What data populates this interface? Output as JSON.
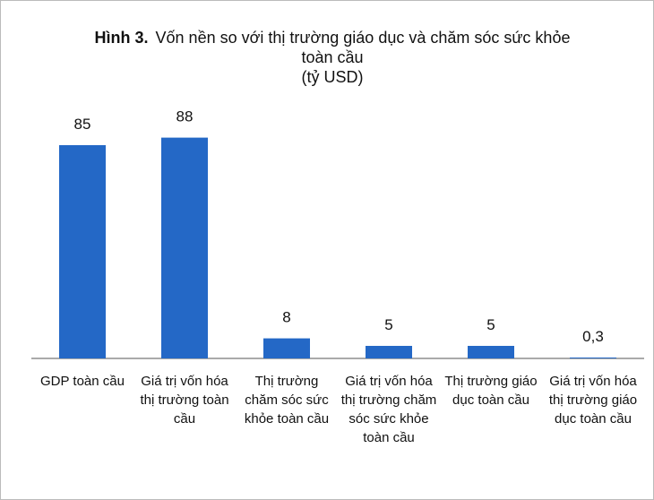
{
  "chart_data": {
    "type": "bar",
    "title_prefix": "Hình 3.",
    "title": "Vốn nền so với thị trường giáo dục và chăm sóc sức khỏe toàn cầu",
    "subtitle": "(tỷ USD)",
    "categories": [
      "GDP toàn cầu",
      "Giá trị vốn hóa thị trường toàn cầu",
      "Thị trường chăm sóc sức khỏe toàn cầu",
      "Giá trị vốn hóa thị trường chăm sóc sức khỏe toàn cầu",
      "Thị trường giáo dục toàn cầu",
      "Giá trị vốn hóa thị trường giáo dục toàn cầu"
    ],
    "values": [
      85,
      88,
      8,
      5,
      5,
      0.3
    ],
    "value_labels": [
      "85",
      "88",
      "8",
      "5",
      "5",
      "0,3"
    ],
    "color": "#2468c6"
  }
}
